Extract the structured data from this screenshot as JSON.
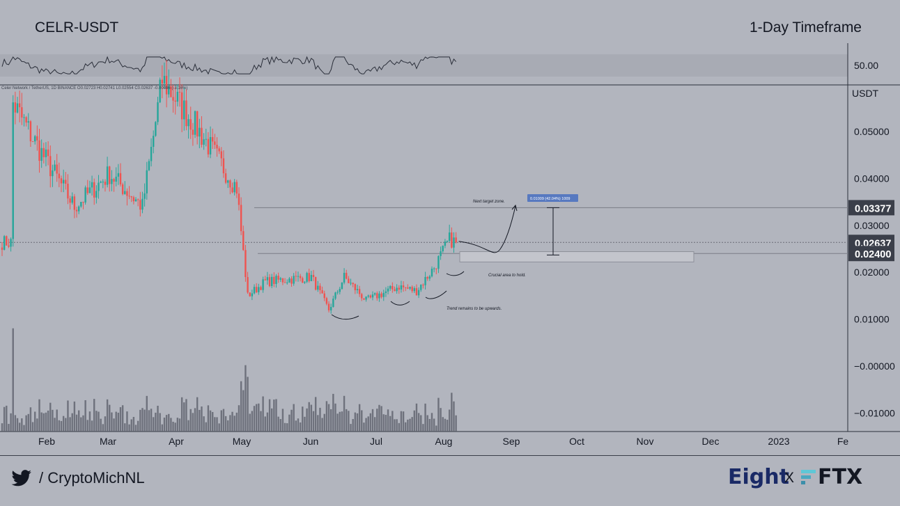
{
  "header": {
    "ticker": "CELR-USDT",
    "timeframe": "1-Day Timeframe"
  },
  "info_line": "Celer Network / TetherUS, 1D BINANCE O0.02723 H0.02741 L0.02554 C0.02637 -0.00086 (-3.16%)",
  "footer": {
    "handle": "/ CryptoMichNL",
    "brand_left": "Eight",
    "brand_sep": "X",
    "brand_right": "FTX"
  },
  "icons": {
    "twitter": "twitter-bird-icon",
    "ftx": "ftx-logo-icon"
  },
  "colors": {
    "up": "#26a69a",
    "down": "#ef5350",
    "volume": "#5d606b",
    "badge_dark": "#3b3f4a",
    "measure_badge": "#5779c0",
    "zone": "#c3c5cc"
  },
  "rsi_panel": {
    "level_label": "50.00",
    "band": [
      30,
      70
    ]
  },
  "price_axis": {
    "unit_label": "USDT",
    "ticks": [
      "0.05000",
      "0.04000",
      "0.03000",
      "0.02000",
      "0.01000",
      "−0.00000",
      "−0.01000"
    ],
    "badges": [
      {
        "label": "0.03377",
        "value": 0.03377
      },
      {
        "label": "0.02637",
        "value": 0.02637
      },
      {
        "label": "0.02400",
        "value": 0.024
      }
    ]
  },
  "time_axis": {
    "labels": [
      "Feb",
      "Mar",
      "Apr",
      "May",
      "Jun",
      "Jul",
      "Aug",
      "Sep",
      "Oct",
      "Nov",
      "Dec",
      "2023",
      "Fe"
    ]
  },
  "annotations": {
    "target": "Next target zone.",
    "measure": "0.01009 (42.04%) 1009",
    "crucial": "Crucial area to hold.",
    "trend": "Trend remains to be upwards."
  },
  "chart_data": {
    "type": "candlestick",
    "title": "CELR-USDT",
    "timeframe": "1-Day Timeframe",
    "ylabel": "USDT",
    "ylim": [
      -0.014,
      0.064
    ],
    "x_range": [
      "2022-01-20",
      "2023-02-28"
    ],
    "current_price": 0.02637,
    "levels": {
      "target": 0.03377,
      "support": 0.024,
      "support_zone": [
        0.0222,
        0.0244
      ]
    },
    "target_projection": {
      "from": 0.02368,
      "to": 0.03377,
      "change": 0.01009,
      "percent": 42.04
    },
    "key_points": [
      {
        "date": "2022-01-25",
        "close": 0.056
      },
      {
        "date": "2022-02-05",
        "close": 0.047
      },
      {
        "date": "2022-02-22",
        "close": 0.034
      },
      {
        "date": "2022-03-10",
        "close": 0.041
      },
      {
        "date": "2022-03-25",
        "close": 0.034
      },
      {
        "date": "2022-04-03",
        "close": 0.061
      },
      {
        "date": "2022-04-20",
        "close": 0.05
      },
      {
        "date": "2022-05-07",
        "close": 0.038
      },
      {
        "date": "2022-05-12",
        "close": 0.015
      },
      {
        "date": "2022-05-20",
        "close": 0.018
      },
      {
        "date": "2022-06-10",
        "close": 0.019
      },
      {
        "date": "2022-06-18",
        "close": 0.012
      },
      {
        "date": "2022-06-25",
        "close": 0.019
      },
      {
        "date": "2022-07-05",
        "close": 0.014
      },
      {
        "date": "2022-07-20",
        "close": 0.017
      },
      {
        "date": "2022-07-28",
        "close": 0.016
      },
      {
        "date": "2022-08-05",
        "close": 0.021
      },
      {
        "date": "2022-08-12",
        "close": 0.027
      },
      {
        "date": "2022-08-15",
        "close": 0.02637
      }
    ]
  }
}
